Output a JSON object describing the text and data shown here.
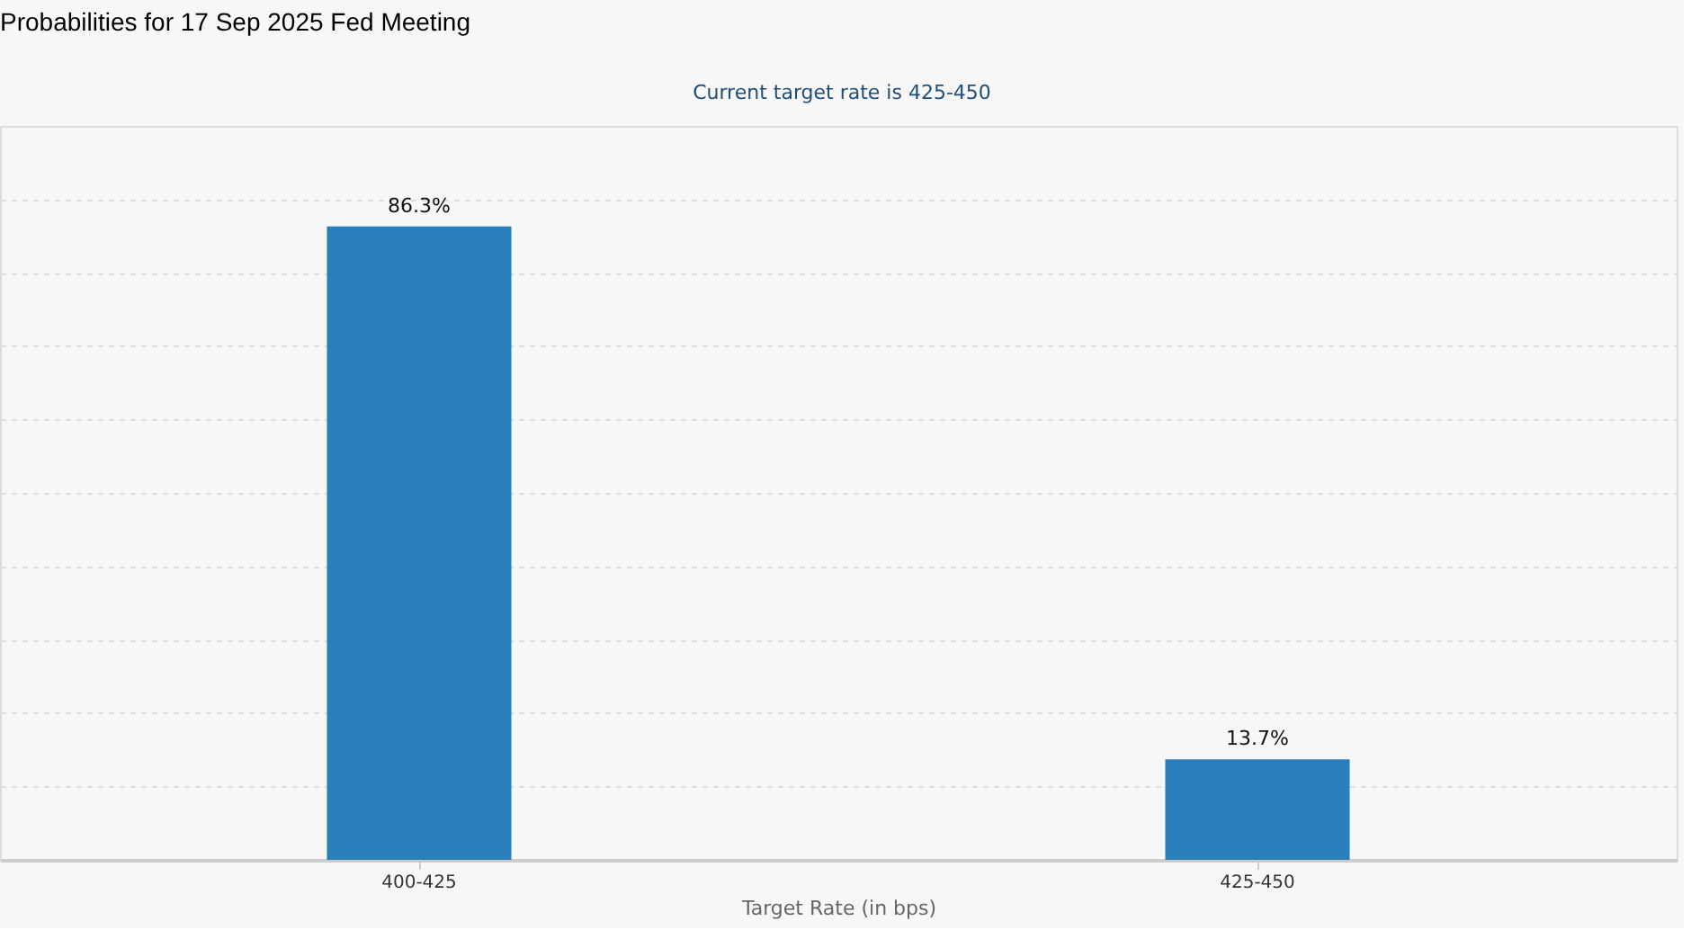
{
  "chart_data": {
    "type": "bar",
    "title": "Probabilities for 17 Sep 2025 Fed Meeting",
    "subtitle": "Current target rate is 425-450",
    "xlabel": "Target Rate (in bps)",
    "categories": [
      "400-425",
      "425-450"
    ],
    "values": [
      86.3,
      13.7
    ],
    "value_labels": [
      "86.3%",
      "13.7%"
    ],
    "color": "#2a7fba",
    "ylim": [
      0,
      100
    ],
    "yticks": [
      {
        "value": 0,
        "label": null
      },
      {
        "value": 10,
        "label": null
      },
      {
        "value": 20,
        "label": null
      },
      {
        "value": 30,
        "label": null
      },
      {
        "value": 40,
        "label": null
      },
      {
        "value": 50,
        "label": null
      },
      {
        "value": 60,
        "label": null
      },
      {
        "value": 70,
        "label": null
      },
      {
        "value": 80,
        "label": null
      },
      {
        "value": 90,
        "label": null
      },
      {
        "value": 100,
        "label": null
      }
    ],
    "tick_labels": "x",
    "grid": "y"
  }
}
